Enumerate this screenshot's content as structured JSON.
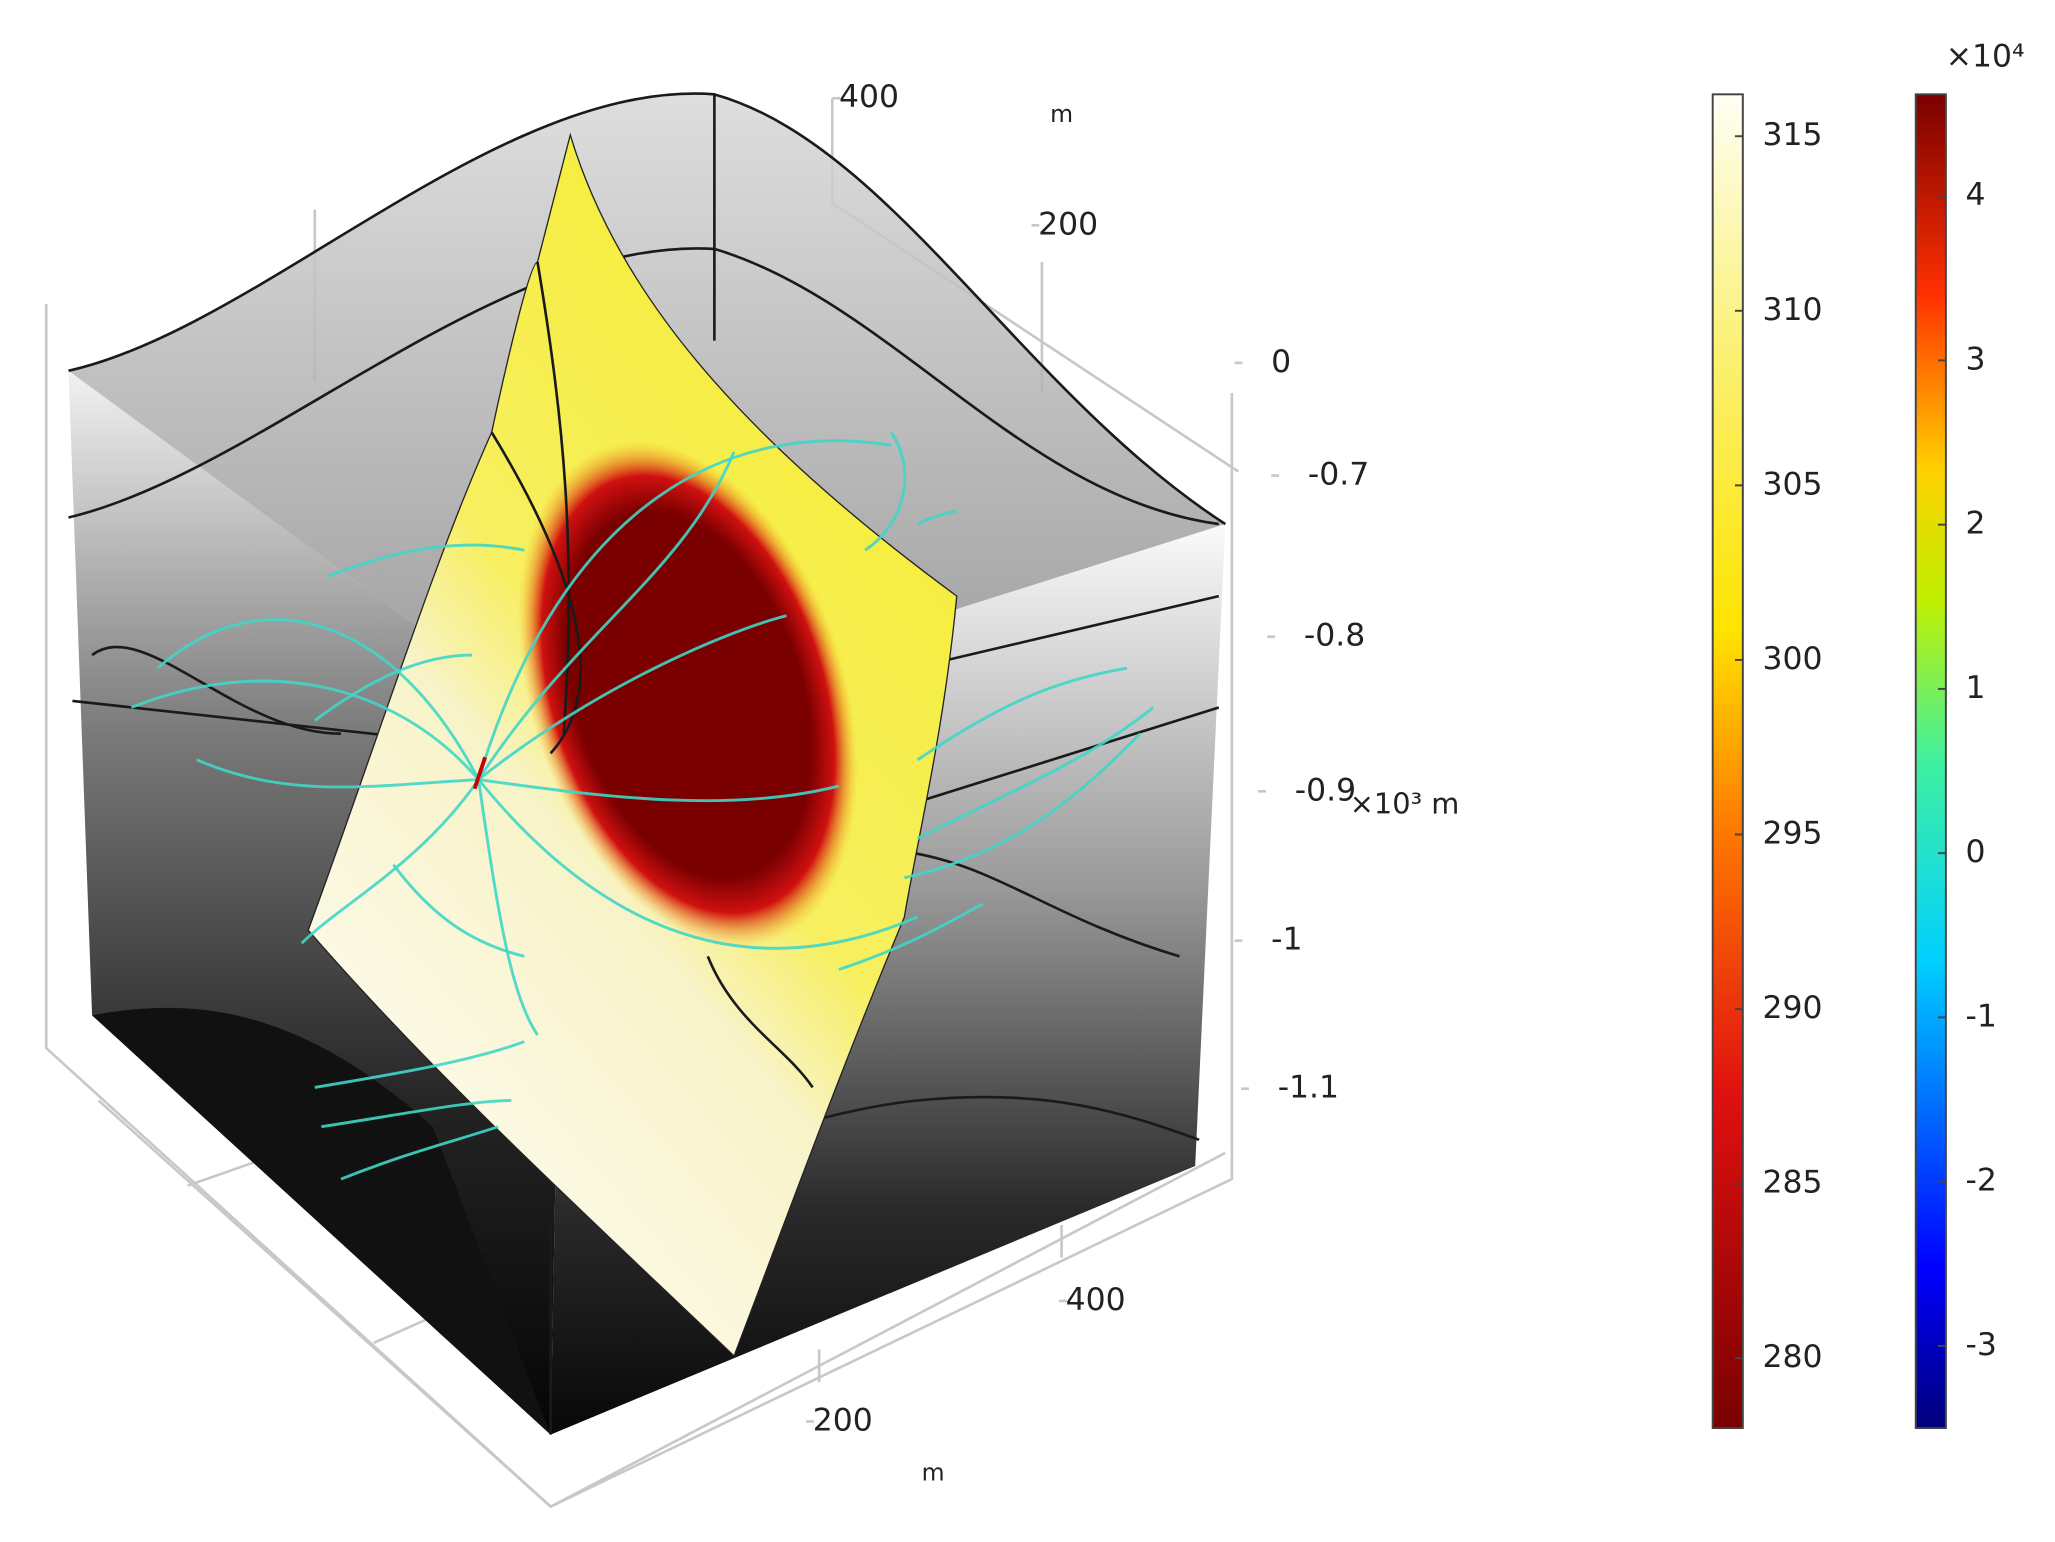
{
  "chart_data": {
    "type": "3d-surface",
    "x_axis": {
      "label": "m",
      "ticks": [
        200,
        400
      ]
    },
    "y_axis": {
      "label": "m",
      "ticks": [
        200,
        400
      ]
    },
    "z_axis": {
      "label": "×10³ m",
      "ticks": [
        0,
        -0.7,
        -0.8,
        -0.9,
        -1,
        -1.1
      ]
    },
    "colorbars": [
      {
        "lim": [
          278.0,
          316.2
        ],
        "ticks": [
          280,
          285,
          290,
          295,
          300,
          305,
          310,
          315
        ],
        "colormap": "heat"
      },
      {
        "lim": [
          -3.5,
          4.62
        ],
        "ticks": [
          -3,
          -2,
          -1,
          0,
          1,
          2,
          3,
          4
        ],
        "colormap": "jet",
        "multiplier": "×10⁴"
      }
    ]
  }
}
